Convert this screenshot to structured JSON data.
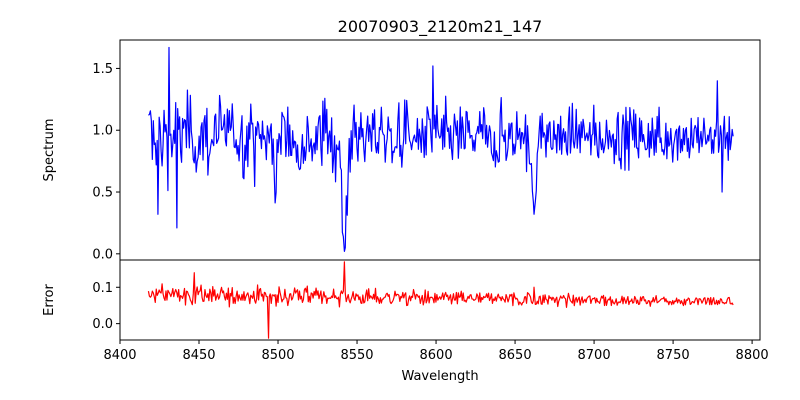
{
  "chart_data": [
    {
      "type": "line",
      "title": "20070903_2120m21_147",
      "ylabel": "Spectrum",
      "xlabel": "",
      "xlim": [
        8400,
        8805
      ],
      "ylim": [
        -0.05,
        1.73
      ],
      "yticks": [
        0.0,
        0.5,
        1.0,
        1.5
      ],
      "ytick_labels": [
        "0.0",
        "0.5",
        "1.0",
        "1.5"
      ],
      "x_range": [
        8418,
        8788
      ],
      "baseline": 0.95,
      "features": [
        {
          "wavelength": 8498,
          "depth": 0.35,
          "width": 1.2
        },
        {
          "wavelength": 8542,
          "depth": 0.85,
          "width": 1.6
        },
        {
          "wavelength": 8662,
          "depth": 0.6,
          "width": 1.4
        }
      ],
      "notable_points": [
        {
          "x": 8431,
          "y": 1.67
        },
        {
          "x": 8424,
          "y": 0.32
        },
        {
          "x": 8436,
          "y": 0.21
        },
        {
          "x": 8542,
          "y": 0.02
        },
        {
          "x": 8598,
          "y": 1.52
        },
        {
          "x": 8662,
          "y": 0.32
        },
        {
          "x": 8778,
          "y": 1.4
        },
        {
          "x": 8781,
          "y": 0.5
        }
      ],
      "series": [
        {
          "name": "Spectrum",
          "color": "#0000ff"
        }
      ]
    },
    {
      "type": "line",
      "title": "",
      "ylabel": "Error",
      "xlabel": "Wavelength",
      "xlim": [
        8400,
        8805
      ],
      "ylim": [
        -0.045,
        0.175
      ],
      "yticks": [
        0.0,
        0.1
      ],
      "ytick_labels": [
        "0.0",
        "0.1"
      ],
      "xticks": [
        8400,
        8450,
        8500,
        8550,
        8600,
        8650,
        8700,
        8750,
        8800
      ],
      "xtick_labels": [
        "8400",
        "8450",
        "8500",
        "8550",
        "8600",
        "8650",
        "8700",
        "8750",
        "8800"
      ],
      "x_range": [
        8418,
        8788
      ],
      "notable_points": [
        {
          "x": 8494,
          "y": -0.04
        },
        {
          "x": 8542,
          "y": 0.17
        },
        {
          "x": 8447,
          "y": 0.14
        },
        {
          "x": 8662,
          "y": 0.1
        }
      ],
      "series": [
        {
          "name": "Error",
          "color": "#ff0000"
        }
      ]
    }
  ]
}
